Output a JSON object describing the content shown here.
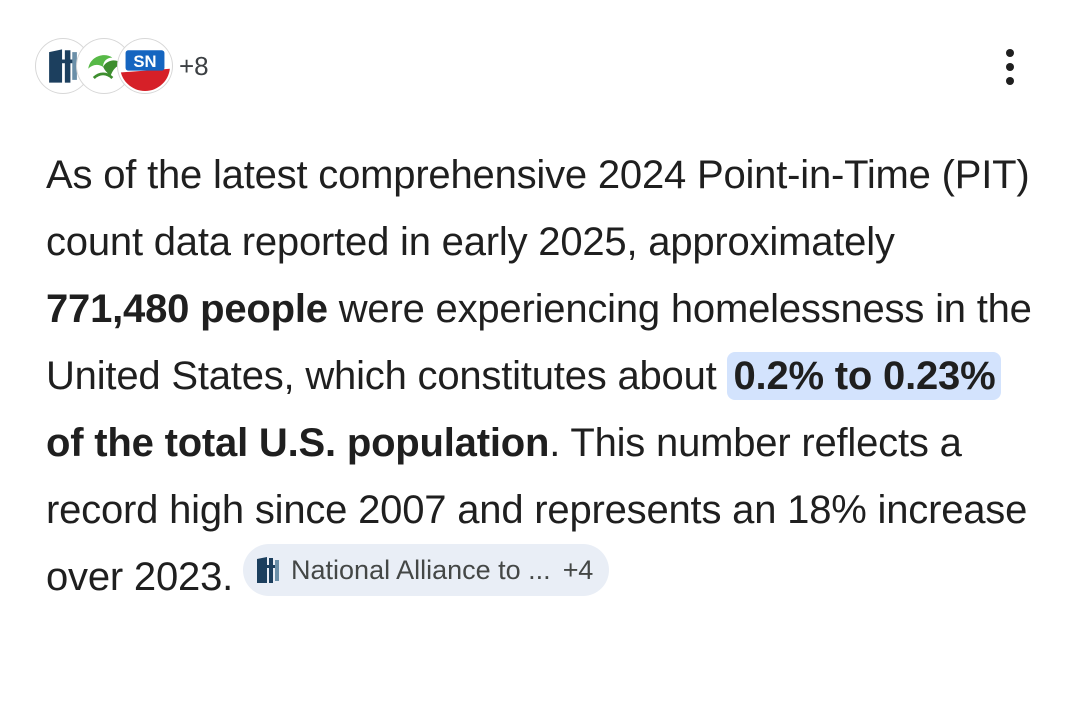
{
  "header": {
    "sources": [
      {
        "icon": "national-alliance-icon"
      },
      {
        "icon": "leaf-logo-icon"
      },
      {
        "icon": "sn-logo-icon",
        "text": "SN"
      }
    ],
    "more_sources": "+8",
    "menu_icon": "more-vert-icon"
  },
  "answer": {
    "text_1": "As of the latest comprehensive 2024 Point-in-Time (PIT) count data reported in early 2025, approximately ",
    "bold_1": "771,480 people",
    "text_2": " were experiencing homelessness in the United States, which constitutes about ",
    "highlight": "0.2% to 0.23%",
    "bold_2": " of the total U.S. population",
    "text_3": ". This number reflects a record high since 2007 and represents an 18% increase over 2023.",
    "citation": {
      "label": "National Alliance to ...",
      "count": "+4",
      "icon": "national-alliance-icon"
    }
  },
  "colors": {
    "highlight_bg": "#d3e3fd",
    "chip_bg": "#e9eef6",
    "text": "#1f1f1f",
    "brand_navy": "#1c3f5e",
    "brand_red": "#d62028",
    "brand_green": "#4caf50"
  }
}
